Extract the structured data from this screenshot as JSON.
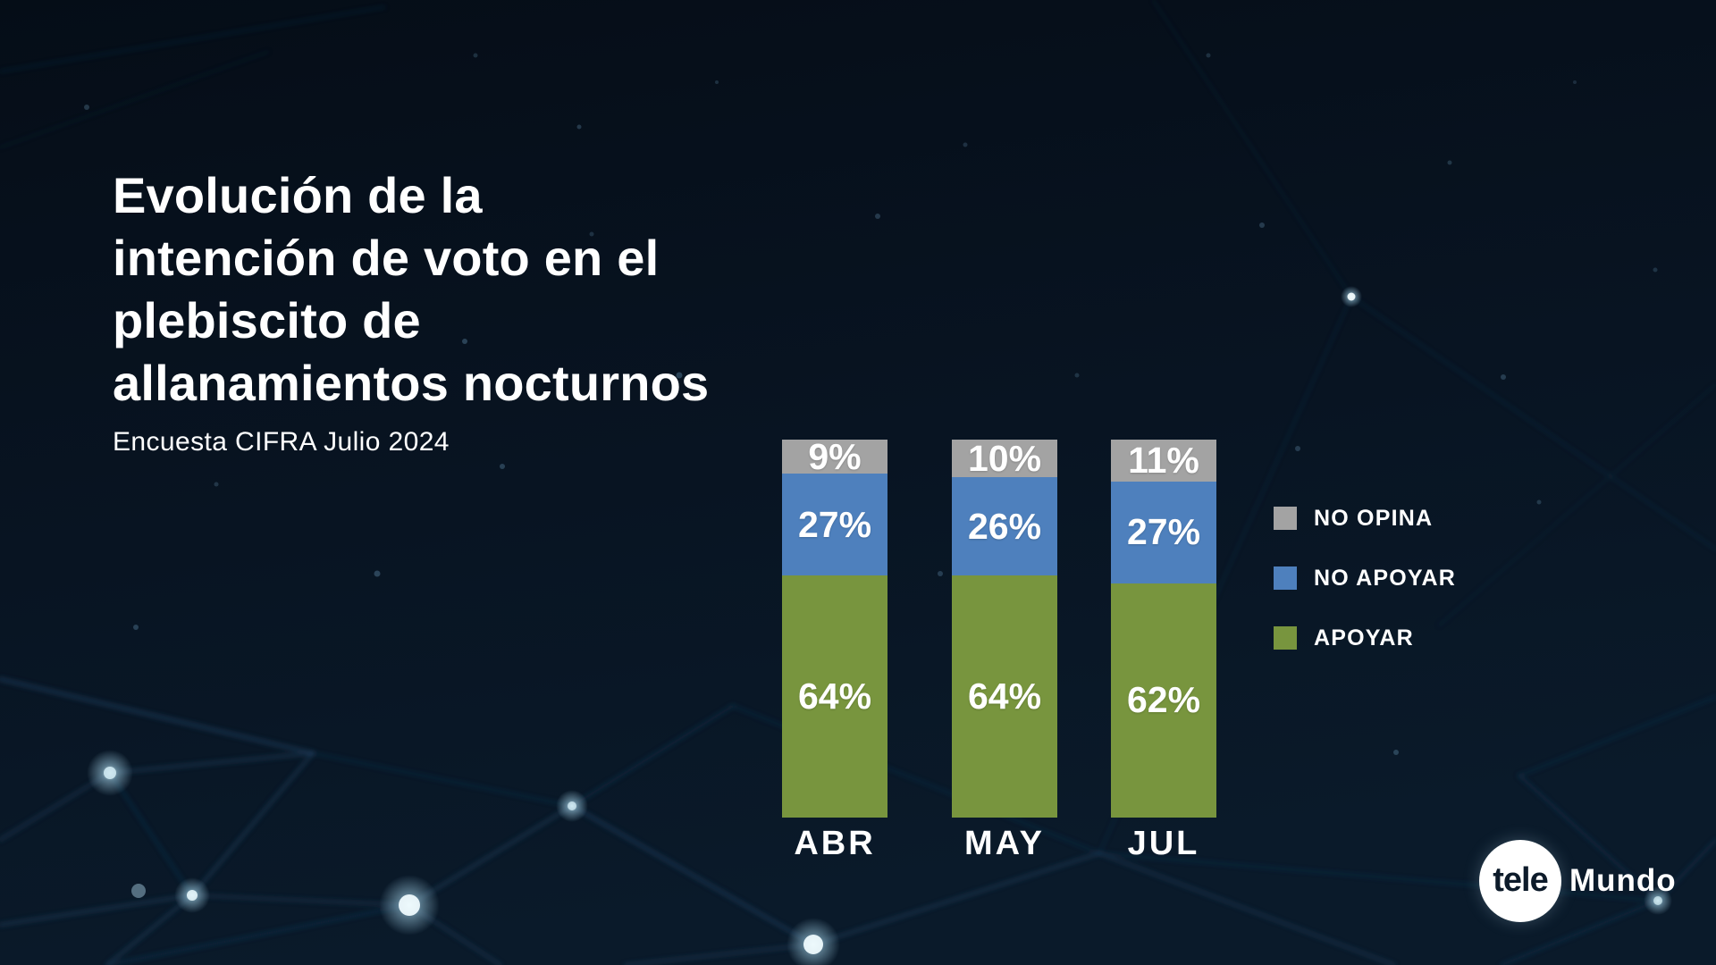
{
  "page": {
    "title": "Evolución de la\nintención de voto en el\nplebiscito de\nallanamientos nocturnos",
    "subtitle": "Encuesta CIFRA Julio 2024"
  },
  "chart_data": {
    "type": "bar",
    "stacked": true,
    "orientation": "vertical",
    "categories": [
      "ABR",
      "MAY",
      "JUL"
    ],
    "series": [
      {
        "name": "NO OPINA",
        "color": "#a3a3a3",
        "values": [
          9,
          10,
          11
        ]
      },
      {
        "name": "NO APOYAR",
        "color": "#4e80bd",
        "values": [
          27,
          26,
          27
        ]
      },
      {
        "name": "APOYAR",
        "color": "#78953e",
        "values": [
          64,
          64,
          62
        ]
      }
    ],
    "value_suffix": "%",
    "ylim": [
      0,
      100
    ],
    "grid": false,
    "legend_position": "right",
    "label_color": "#ffffff"
  },
  "colors": {
    "background": "#07111d",
    "text": "#ffffff"
  },
  "logo": {
    "circle_text": "tele",
    "wordmark": "Mundo"
  }
}
